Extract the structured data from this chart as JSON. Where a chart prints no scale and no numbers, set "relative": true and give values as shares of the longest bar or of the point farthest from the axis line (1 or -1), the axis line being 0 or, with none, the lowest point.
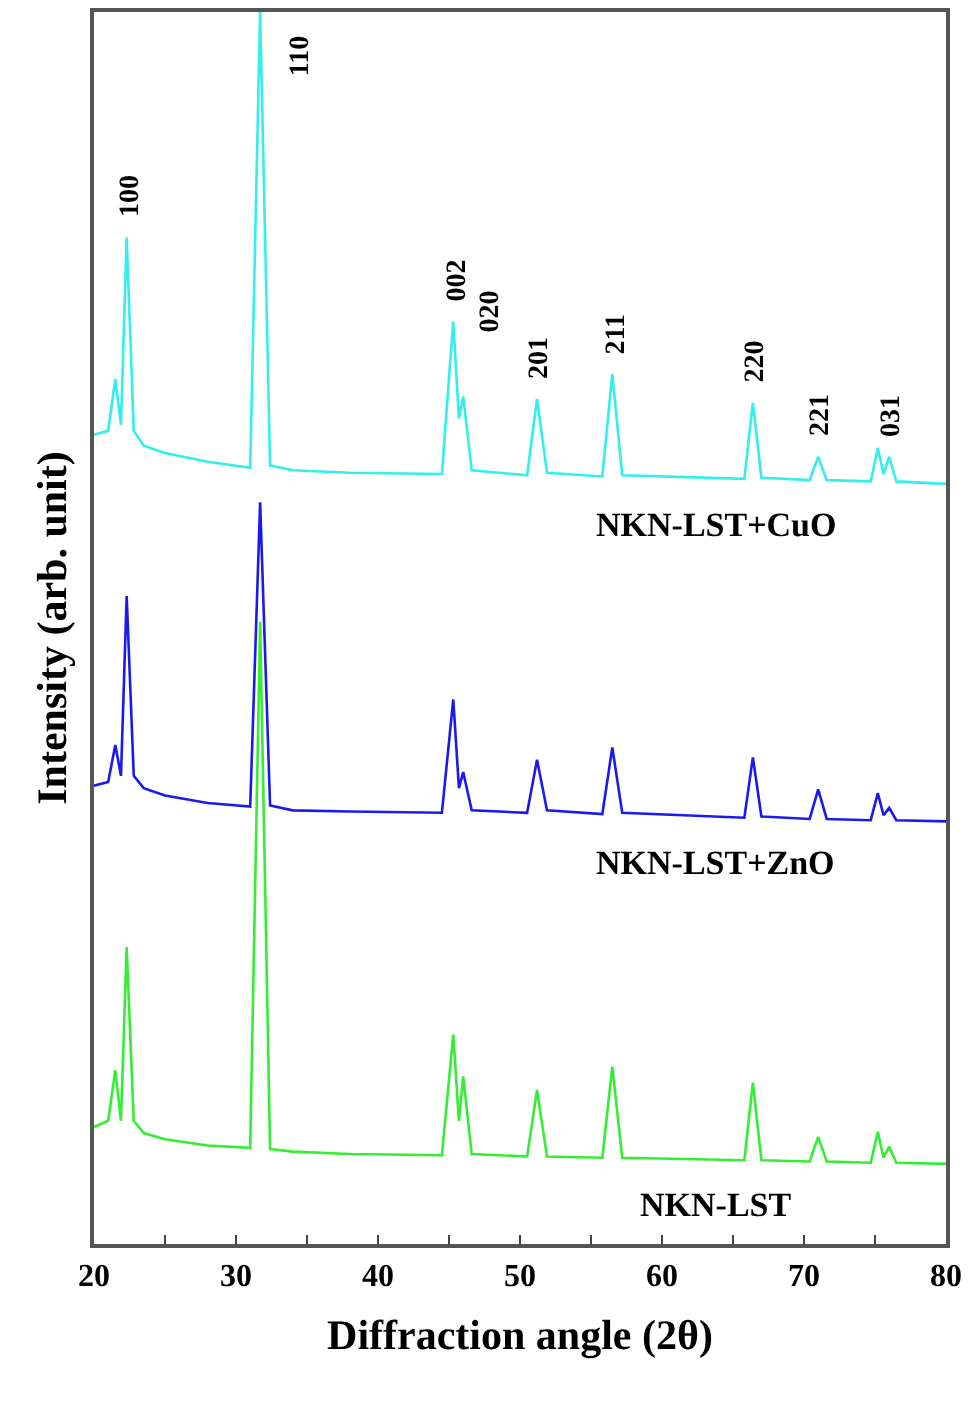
{
  "chart_data": {
    "type": "line",
    "relative": true,
    "xlabel": "Diffraction angle (2θ)",
    "ylabel": "Intensity (arb. unit)",
    "x": [
      20,
      21.0,
      21.5,
      21.9,
      22.3,
      22.8,
      23.5,
      25,
      28,
      31.0,
      31.7,
      32.4,
      34,
      38,
      44.5,
      45.3,
      45.7,
      46.0,
      46.6,
      50.5,
      51.2,
      51.9,
      55.8,
      56.5,
      57.2,
      65.8,
      66.4,
      67.0,
      70.4,
      71.0,
      71.6,
      74.7,
      75.2,
      75.6,
      76.0,
      76.5,
      80
    ],
    "xlim": [
      20,
      80
    ],
    "xticks": [
      20,
      {
        "value": 25,
        "label": null
      },
      30,
      {
        "value": 35,
        "label": null
      },
      40,
      {
        "value": 45,
        "label": null
      },
      50,
      {
        "value": 55,
        "label": null
      },
      60,
      {
        "value": 65,
        "label": null
      },
      70,
      {
        "value": 75,
        "label": null
      },
      80
    ],
    "series": [
      {
        "name": "NKN-LST+CuO",
        "color": "#33eeee",
        "values": [
          0.657,
          0.66,
          0.702,
          0.665,
          0.817,
          0.66,
          0.648,
          0.642,
          0.635,
          0.63,
          1.0,
          0.632,
          0.628,
          0.626,
          0.625,
          0.749,
          0.67,
          0.688,
          0.628,
          0.624,
          0.686,
          0.626,
          0.623,
          0.706,
          0.624,
          0.621,
          0.683,
          0.622,
          0.62,
          0.639,
          0.62,
          0.619,
          0.646,
          0.625,
          0.639,
          0.619,
          0.617
        ]
      },
      {
        "name": "NKN-LST+ZnO",
        "color": "#1a1aee",
        "values": [
          0.372,
          0.375,
          0.405,
          0.38,
          0.526,
          0.38,
          0.37,
          0.364,
          0.358,
          0.355,
          0.602,
          0.356,
          0.352,
          0.351,
          0.35,
          0.442,
          0.37,
          0.383,
          0.352,
          0.35,
          0.393,
          0.352,
          0.349,
          0.403,
          0.35,
          0.346,
          0.395,
          0.347,
          0.345,
          0.369,
          0.345,
          0.344,
          0.366,
          0.348,
          0.354,
          0.344,
          0.343
        ]
      },
      {
        "name": "NKN-LST",
        "color": "#33ee33",
        "values": [
          0.095,
          0.1,
          0.141,
          0.1,
          0.241,
          0.1,
          0.09,
          0.085,
          0.08,
          0.078,
          0.505,
          0.077,
          0.075,
          0.073,
          0.072,
          0.17,
          0.1,
          0.136,
          0.073,
          0.071,
          0.125,
          0.071,
          0.07,
          0.144,
          0.07,
          0.068,
          0.131,
          0.068,
          0.067,
          0.087,
          0.067,
          0.066,
          0.091,
          0.07,
          0.079,
          0.066,
          0.065
        ]
      }
    ],
    "annotations": [
      {
        "text": "100",
        "x": 22.3,
        "y": 0.817
      },
      {
        "text": "110",
        "x": 31.7,
        "y": 1.0
      },
      {
        "text": "002",
        "x": 45.3,
        "y": 0.749
      },
      {
        "text": "020",
        "x": 46.0,
        "y": 0.688
      },
      {
        "text": "201",
        "x": 51.2,
        "y": 0.686
      },
      {
        "text": "211",
        "x": 56.5,
        "y": 0.706
      },
      {
        "text": "220",
        "x": 66.4,
        "y": 0.683
      },
      {
        "text": "221",
        "x": 71.0,
        "y": 0.639
      },
      {
        "text": "031",
        "x": 76.0,
        "y": 0.639
      }
    ],
    "legend": false,
    "marker": "none",
    "line_style": "solid"
  }
}
